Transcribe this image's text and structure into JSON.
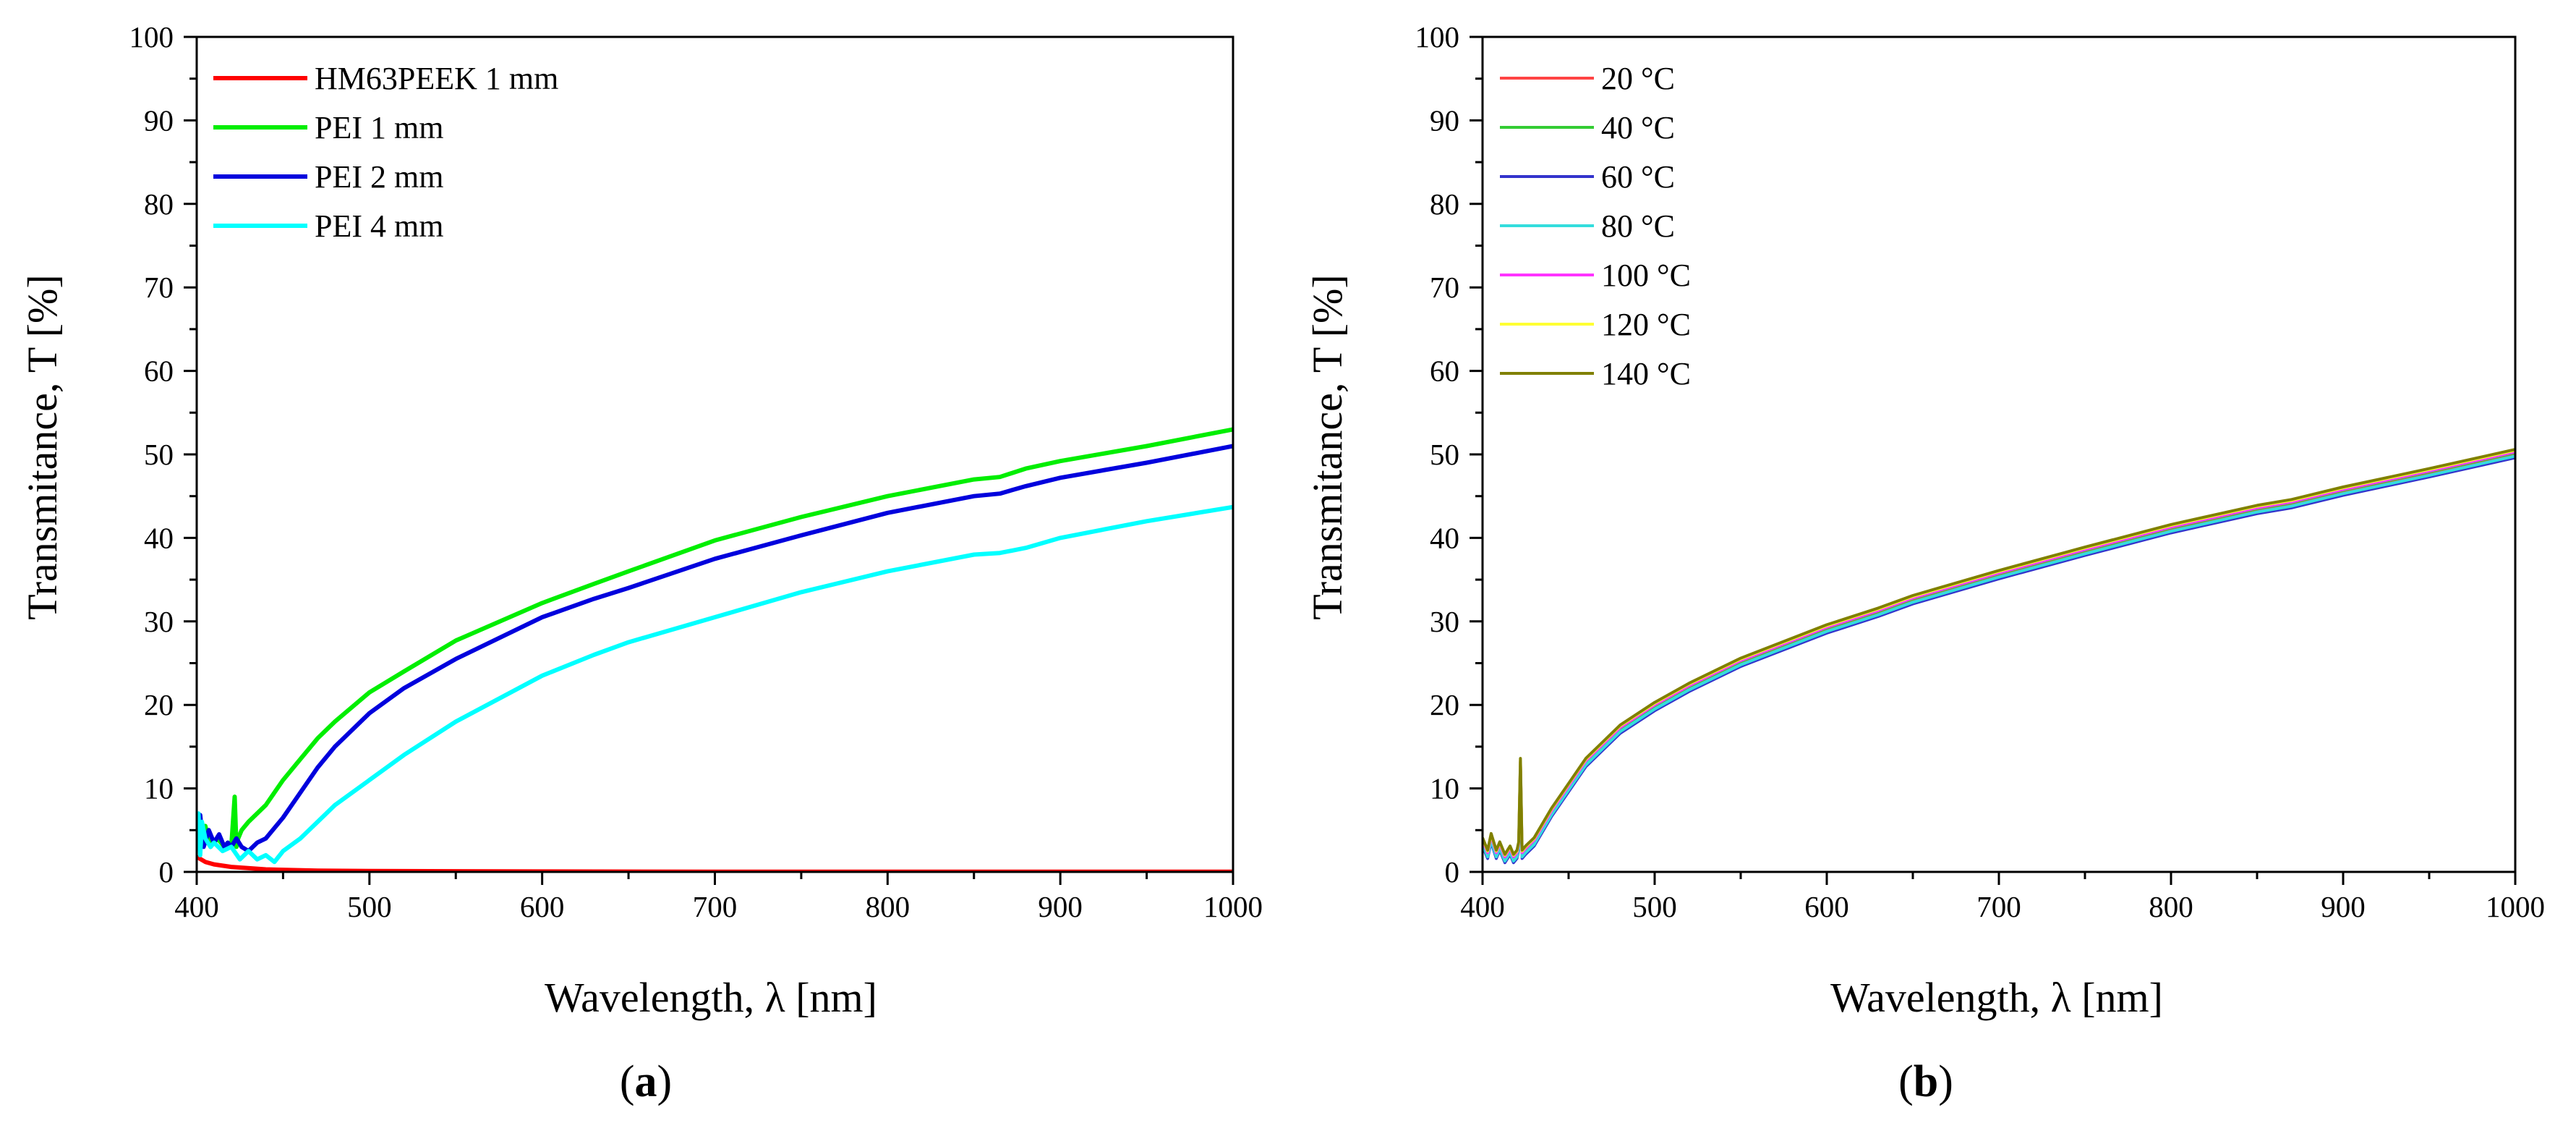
{
  "chart_data": [
    {
      "panel": "a",
      "type": "line",
      "xlabel": "Wavelength, λ [nm]",
      "ylabel": "Transmitance, T [%]",
      "xlim": [
        400,
        1000
      ],
      "ylim": [
        0,
        100
      ],
      "xticks": [
        400,
        500,
        600,
        700,
        800,
        900,
        1000
      ],
      "yticks": [
        0,
        10,
        20,
        30,
        40,
        50,
        60,
        70,
        80,
        90,
        100
      ],
      "legend_position": "top-left",
      "series": [
        {
          "name": "HM63PEEK 1 mm",
          "color": "#ff0000",
          "x": [
            400,
            405,
            410,
            420,
            440,
            470,
            500,
            600,
            700,
            800,
            900,
            1000
          ],
          "y": [
            1.8,
            1.2,
            0.9,
            0.6,
            0.3,
            0.15,
            0.1,
            0.05,
            0.03,
            0.02,
            0.02,
            0.02
          ]
        },
        {
          "name": "PEI 1 mm",
          "color": "#00ee00",
          "x": [
            400,
            402,
            405,
            408,
            412,
            416,
            418,
            420,
            422,
            423,
            424,
            426,
            430,
            435,
            440,
            450,
            460,
            470,
            480,
            500,
            520,
            550,
            600,
            630,
            650,
            700,
            750,
            800,
            850,
            865,
            880,
            900,
            950,
            1000
          ],
          "y": [
            6,
            3,
            5.5,
            3,
            4,
            3,
            3.5,
            3,
            9,
            3,
            4,
            5,
            6,
            7,
            8,
            11,
            13.5,
            16,
            18,
            21.5,
            24,
            27.7,
            32.2,
            34.5,
            36,
            39.7,
            42.5,
            45,
            47,
            47.3,
            48.3,
            49.2,
            51,
            53
          ]
        },
        {
          "name": "PEI 2 mm",
          "color": "#0000dd",
          "x": [
            400,
            402,
            404,
            407,
            410,
            413,
            416,
            418,
            420,
            423,
            426,
            430,
            435,
            440,
            450,
            460,
            470,
            480,
            500,
            520,
            550,
            600,
            630,
            650,
            700,
            750,
            800,
            850,
            865,
            880,
            900,
            950,
            1000
          ],
          "y": [
            4,
            6.8,
            3,
            5,
            3.5,
            4.5,
            3,
            3.5,
            3,
            4,
            3,
            2.5,
            3.5,
            4,
            6.5,
            9.5,
            12.5,
            15,
            19,
            22,
            25.5,
            30.5,
            32.7,
            34,
            37.5,
            40.3,
            43,
            45,
            45.3,
            46.2,
            47.2,
            49,
            51
          ]
        },
        {
          "name": "PEI 4 mm",
          "color": "#00ffff",
          "x": [
            400,
            401,
            402,
            403,
            405,
            408,
            410,
            415,
            420,
            425,
            430,
            435,
            440,
            445,
            450,
            460,
            470,
            480,
            500,
            520,
            550,
            600,
            630,
            650,
            700,
            750,
            800,
            850,
            865,
            880,
            900,
            950,
            1000
          ],
          "y": [
            3,
            7,
            2,
            6,
            4,
            3,
            3.5,
            2.5,
            3,
            1.5,
            2.5,
            1.5,
            2,
            1.2,
            2.5,
            4,
            6,
            8,
            11,
            14,
            18,
            23.5,
            26,
            27.5,
            30.5,
            33.5,
            36,
            38,
            38.2,
            38.8,
            40,
            42,
            43.7
          ]
        }
      ]
    },
    {
      "panel": "b",
      "type": "line",
      "xlabel": "Wavelength, λ [nm]",
      "ylabel": "Transmitance, T [%]",
      "xlim": [
        400,
        1000
      ],
      "ylim": [
        0,
        100
      ],
      "xticks": [
        400,
        500,
        600,
        700,
        800,
        900,
        1000
      ],
      "yticks": [
        0,
        10,
        20,
        30,
        40,
        50,
        60,
        70,
        80,
        90,
        100
      ],
      "legend_position": "top-left",
      "base_curve": {
        "x": [
          400,
          403,
          405,
          408,
          410,
          413,
          416,
          418,
          420,
          421,
          422,
          423,
          425,
          430,
          440,
          450,
          460,
          470,
          480,
          500,
          520,
          550,
          600,
          630,
          650,
          700,
          750,
          800,
          850,
          870,
          900,
          950,
          1000
        ],
        "y": [
          3.5,
          2,
          4,
          2,
          3,
          1.5,
          2.5,
          1.5,
          2,
          3,
          13,
          2,
          2.5,
          3.5,
          7,
          10,
          13,
          15,
          17,
          19.7,
          22,
          25,
          29,
          31,
          32.5,
          35.5,
          38.3,
          41,
          43.3,
          44,
          45.5,
          47.7,
          50
        ]
      },
      "series": [
        {
          "name": "20 °C",
          "color": "#ff4444",
          "offset": 0.0
        },
        {
          "name": "40 °C",
          "color": "#33cc33",
          "offset": 0.2
        },
        {
          "name": "60 °C",
          "color": "#3333cc",
          "offset": -0.4
        },
        {
          "name": "80 °C",
          "color": "#33dddd",
          "offset": -0.2
        },
        {
          "name": "100 °C",
          "color": "#ff33ff",
          "offset": 0.3
        },
        {
          "name": "120 °C",
          "color": "#ffff33",
          "offset": 0.5
        },
        {
          "name": "140 °C",
          "color": "#808000",
          "offset": 0.6
        }
      ]
    }
  ],
  "panel_labels": [
    {
      "open": "(",
      "letter": "a",
      "close": ")"
    },
    {
      "open": "(",
      "letter": "b",
      "close": ")"
    }
  ]
}
